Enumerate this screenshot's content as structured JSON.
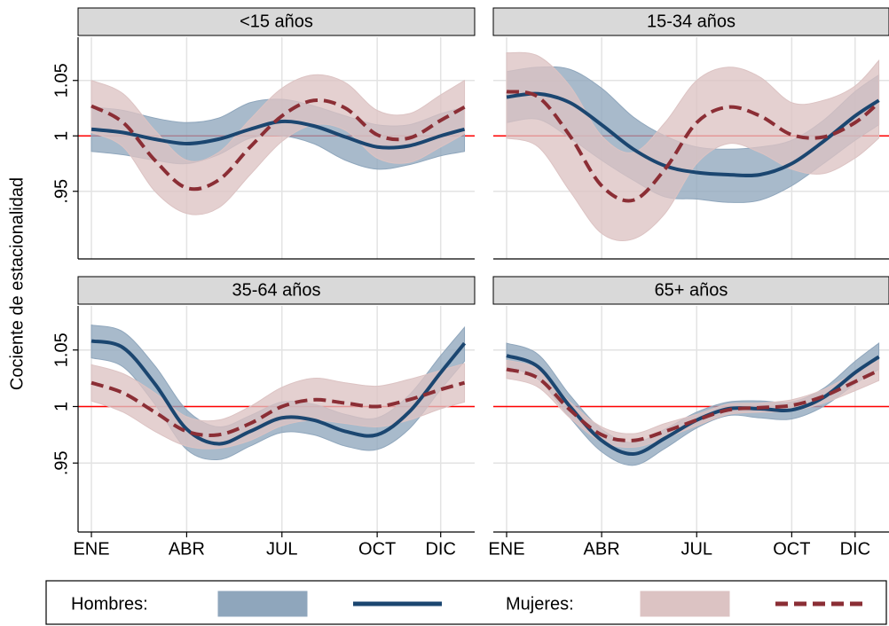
{
  "y_label": "Cociente de estacionalidad",
  "chart_data": [
    {
      "type": "line",
      "title": "<15 años",
      "x": [
        1,
        2,
        3,
        4,
        5,
        6,
        7,
        8,
        9,
        10,
        11,
        12,
        12.75
      ],
      "xlim": [
        0.58,
        13.07
      ],
      "xticks": [
        {
          "value": 1,
          "label": "ENE"
        },
        {
          "value": 4,
          "label": "ABR"
        },
        {
          "value": 7,
          "label": "JUL"
        },
        {
          "value": 10,
          "label": "OCT"
        },
        {
          "value": 12,
          "label": "DIC"
        }
      ],
      "ylim": [
        0.889,
        1.089
      ],
      "yticks": [
        {
          "value": 0.95,
          "label": ".95"
        },
        1,
        1.05
      ],
      "hline": 1,
      "hline_color": "#ff0000",
      "grid": true,
      "series": [
        {
          "name": "Hombres:",
          "color": "#1b4670",
          "band_color": "#8fa6bc",
          "dash": false,
          "values": [
            1.006,
            1.003,
            0.997,
            0.993,
            0.997,
            1.006,
            1.013,
            1.009,
            0.999,
            0.99,
            0.991,
            1.0,
            1.006
          ],
          "lower": [
            0.986,
            0.983,
            0.978,
            0.975,
            0.983,
            0.998,
            1.0,
            0.993,
            0.978,
            0.97,
            0.974,
            0.982,
            0.986
          ],
          "upper": [
            1.026,
            1.023,
            1.016,
            1.012,
            1.016,
            1.03,
            1.033,
            1.027,
            1.018,
            1.01,
            1.01,
            1.02,
            1.026
          ]
        },
        {
          "name": "Mujeres:",
          "color": "#8b2e35",
          "band_color": "#dcc3c3",
          "dash": true,
          "values": [
            1.027,
            1.012,
            0.978,
            0.953,
            0.96,
            0.99,
            1.018,
            1.032,
            1.025,
            1.001,
            0.998,
            1.014,
            1.026
          ],
          "lower": [
            1.003,
            0.99,
            0.95,
            0.93,
            0.935,
            0.965,
            0.995,
            1.01,
            1.005,
            0.98,
            0.976,
            0.99,
            1.002
          ],
          "upper": [
            1.05,
            1.038,
            1.005,
            0.978,
            0.985,
            1.015,
            1.043,
            1.055,
            1.048,
            1.023,
            1.02,
            1.037,
            1.05
          ]
        }
      ]
    },
    {
      "type": "line",
      "title": "15-34 años",
      "x": [
        1,
        2,
        3,
        4,
        5,
        6,
        7,
        8,
        9,
        10,
        11,
        12,
        12.75
      ],
      "xlim": [
        0.58,
        13.07
      ],
      "xticks": [
        {
          "value": 1,
          "label": "ENE"
        },
        {
          "value": 4,
          "label": "ABR"
        },
        {
          "value": 7,
          "label": "JUL"
        },
        {
          "value": 10,
          "label": "OCT"
        },
        {
          "value": 12,
          "label": "DIC"
        }
      ],
      "ylim": [
        0.889,
        1.089
      ],
      "yticks": [
        {
          "value": 0.95,
          "label": ".95"
        },
        1,
        1.05
      ],
      "hline": 1,
      "hline_color": "#ff0000",
      "grid": true,
      "series": [
        {
          "name": "Hombres:",
          "color": "#1b4670",
          "band_color": "#8fa6bc",
          "dash": false,
          "values": [
            1.035,
            1.038,
            1.03,
            1.01,
            0.988,
            0.973,
            0.967,
            0.965,
            0.965,
            0.975,
            0.995,
            1.018,
            1.032
          ],
          "lower": [
            1.012,
            1.015,
            0.998,
            0.978,
            0.96,
            0.945,
            0.943,
            0.94,
            0.942,
            0.955,
            0.975,
            0.996,
            1.01
          ],
          "upper": [
            1.058,
            1.062,
            1.06,
            1.043,
            1.017,
            1.0,
            0.99,
            0.988,
            0.99,
            0.996,
            1.014,
            1.04,
            1.055
          ]
        },
        {
          "name": "Mujeres:",
          "color": "#8b2e35",
          "band_color": "#dcc3c3",
          "dash": true,
          "values": [
            1.04,
            1.035,
            1.0,
            0.955,
            0.942,
            0.97,
            1.012,
            1.026,
            1.018,
            1.001,
            0.999,
            1.012,
            1.03
          ],
          "lower": [
            0.998,
            0.99,
            0.95,
            0.912,
            0.907,
            0.93,
            0.975,
            0.993,
            0.985,
            0.97,
            0.966,
            0.98,
            0.998
          ],
          "upper": [
            1.075,
            1.072,
            1.045,
            1.0,
            0.985,
            1.012,
            1.05,
            1.062,
            1.053,
            1.03,
            1.032,
            1.045,
            1.068
          ]
        }
      ]
    },
    {
      "type": "line",
      "title": "35-64 años",
      "x": [
        1,
        2,
        3,
        4,
        5,
        6,
        7,
        8,
        9,
        10,
        11,
        12,
        12.75
      ],
      "xlim": [
        0.58,
        13.07
      ],
      "xticks": [
        {
          "value": 1,
          "label": "ENE"
        },
        {
          "value": 4,
          "label": "ABR"
        },
        {
          "value": 7,
          "label": "JUL"
        },
        {
          "value": 10,
          "label": "OCT"
        },
        {
          "value": 12,
          "label": "DIC"
        }
      ],
      "ylim": [
        0.889,
        1.089
      ],
      "yticks": [
        {
          "value": 0.95,
          "label": ".95"
        },
        1,
        1.05
      ],
      "hline": 1,
      "hline_color": "#ff0000",
      "grid": true,
      "series": [
        {
          "name": "Hombres:",
          "color": "#1b4670",
          "band_color": "#8fa6bc",
          "dash": false,
          "values": [
            1.058,
            1.052,
            1.02,
            0.98,
            0.967,
            0.978,
            0.99,
            0.988,
            0.978,
            0.975,
            0.995,
            1.03,
            1.056
          ],
          "lower": [
            1.043,
            1.035,
            1.002,
            0.962,
            0.953,
            0.965,
            0.977,
            0.975,
            0.965,
            0.962,
            0.98,
            1.015,
            1.04
          ],
          "upper": [
            1.072,
            1.066,
            1.036,
            0.997,
            0.982,
            0.992,
            1.004,
            1.002,
            0.993,
            0.99,
            1.01,
            1.045,
            1.07
          ]
        },
        {
          "name": "Mujeres:",
          "color": "#8b2e35",
          "band_color": "#dcc3c3",
          "dash": true,
          "values": [
            1.021,
            1.012,
            0.995,
            0.978,
            0.975,
            0.985,
            1.0,
            1.006,
            1.003,
            1.0,
            1.006,
            1.015,
            1.021
          ],
          "lower": [
            1.005,
            0.995,
            0.978,
            0.965,
            0.963,
            0.97,
            0.983,
            0.988,
            0.985,
            0.982,
            0.988,
            0.998,
            1.004
          ],
          "upper": [
            1.037,
            1.029,
            1.012,
            0.991,
            0.988,
            1.0,
            1.017,
            1.025,
            1.021,
            1.018,
            1.024,
            1.032,
            1.038
          ]
        }
      ]
    },
    {
      "type": "line",
      "title": "65+ años",
      "x": [
        1,
        2,
        3,
        4,
        5,
        6,
        7,
        8,
        9,
        10,
        11,
        12,
        12.75
      ],
      "xlim": [
        0.58,
        13.07
      ],
      "xticks": [
        {
          "value": 1,
          "label": "ENE"
        },
        {
          "value": 4,
          "label": "ABR"
        },
        {
          "value": 7,
          "label": "JUL"
        },
        {
          "value": 10,
          "label": "OCT"
        },
        {
          "value": 12,
          "label": "DIC"
        }
      ],
      "ylim": [
        0.889,
        1.089
      ],
      "yticks": [
        {
          "value": 0.95,
          "label": ".95"
        },
        1,
        1.05
      ],
      "hline": 1,
      "hline_color": "#ff0000",
      "grid": true,
      "series": [
        {
          "name": "Hombres:",
          "color": "#1b4670",
          "band_color": "#8fa6bc",
          "dash": false,
          "values": [
            1.045,
            1.035,
            1.0,
            0.97,
            0.958,
            0.972,
            0.988,
            0.998,
            0.998,
            0.997,
            1.008,
            1.03,
            1.044
          ],
          "lower": [
            1.035,
            1.024,
            0.99,
            0.96,
            0.948,
            0.963,
            0.981,
            0.992,
            0.99,
            0.989,
            1.0,
            1.02,
            1.033
          ],
          "upper": [
            1.056,
            1.046,
            1.01,
            0.98,
            0.968,
            0.98,
            0.995,
            1.004,
            1.005,
            1.004,
            1.016,
            1.04,
            1.056
          ]
        },
        {
          "name": "Mujeres:",
          "color": "#8b2e35",
          "band_color": "#dcc3c3",
          "dash": true,
          "values": [
            1.033,
            1.025,
            0.997,
            0.975,
            0.97,
            0.978,
            0.988,
            0.997,
            0.999,
            1.001,
            1.009,
            1.022,
            1.032
          ],
          "lower": [
            1.025,
            1.017,
            0.99,
            0.969,
            0.964,
            0.972,
            0.983,
            0.993,
            0.995,
            0.996,
            1.003,
            1.014,
            1.023
          ],
          "upper": [
            1.041,
            1.033,
            1.004,
            0.982,
            0.976,
            0.985,
            0.993,
            1.002,
            1.003,
            1.006,
            1.015,
            1.03,
            1.041
          ]
        }
      ]
    }
  ]
}
